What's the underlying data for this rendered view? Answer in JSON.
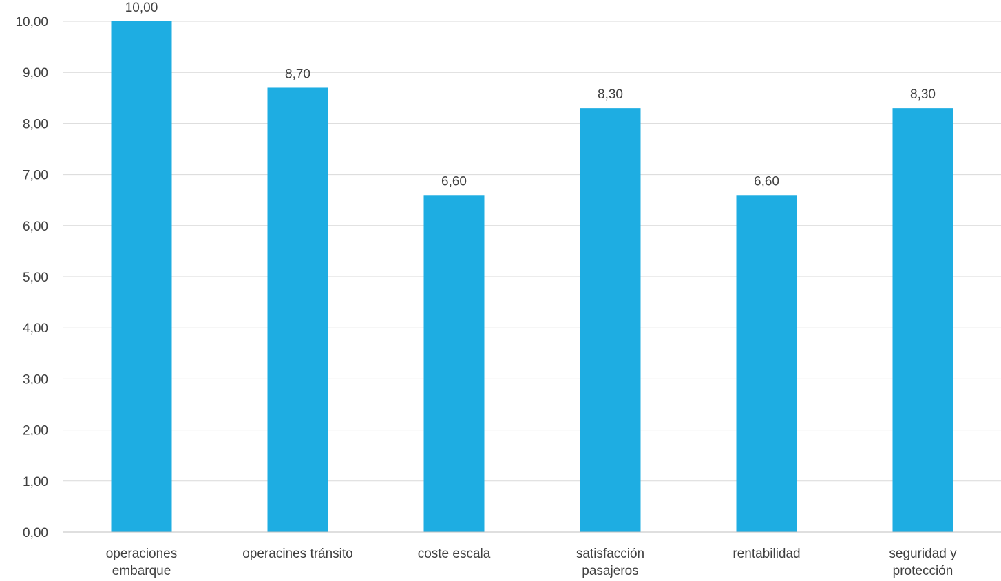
{
  "chart_data": {
    "type": "bar",
    "categories": [
      [
        "operaciones",
        "embarque"
      ],
      [
        "operacines tránsito"
      ],
      [
        "coste escala"
      ],
      [
        "satisfacción",
        "pasajeros"
      ],
      [
        "rentabilidad"
      ],
      [
        "seguridad y",
        "protección"
      ]
    ],
    "values": [
      10.0,
      8.7,
      6.6,
      8.3,
      6.6,
      8.3
    ],
    "value_labels": [
      "10,00",
      "8,70",
      "6,60",
      "8,30",
      "6,60",
      "8,30"
    ],
    "ylim": [
      0,
      10
    ],
    "yticks": [
      0,
      1,
      2,
      3,
      4,
      5,
      6,
      7,
      8,
      9,
      10
    ],
    "ytick_labels": [
      "0,00",
      "1,00",
      "2,00",
      "3,00",
      "4,00",
      "5,00",
      "6,00",
      "7,00",
      "8,00",
      "9,00",
      "10,00"
    ],
    "grid": true,
    "legend": "none",
    "bar_color": "#1EADE2",
    "title": "",
    "xlabel": "",
    "ylabel": ""
  }
}
